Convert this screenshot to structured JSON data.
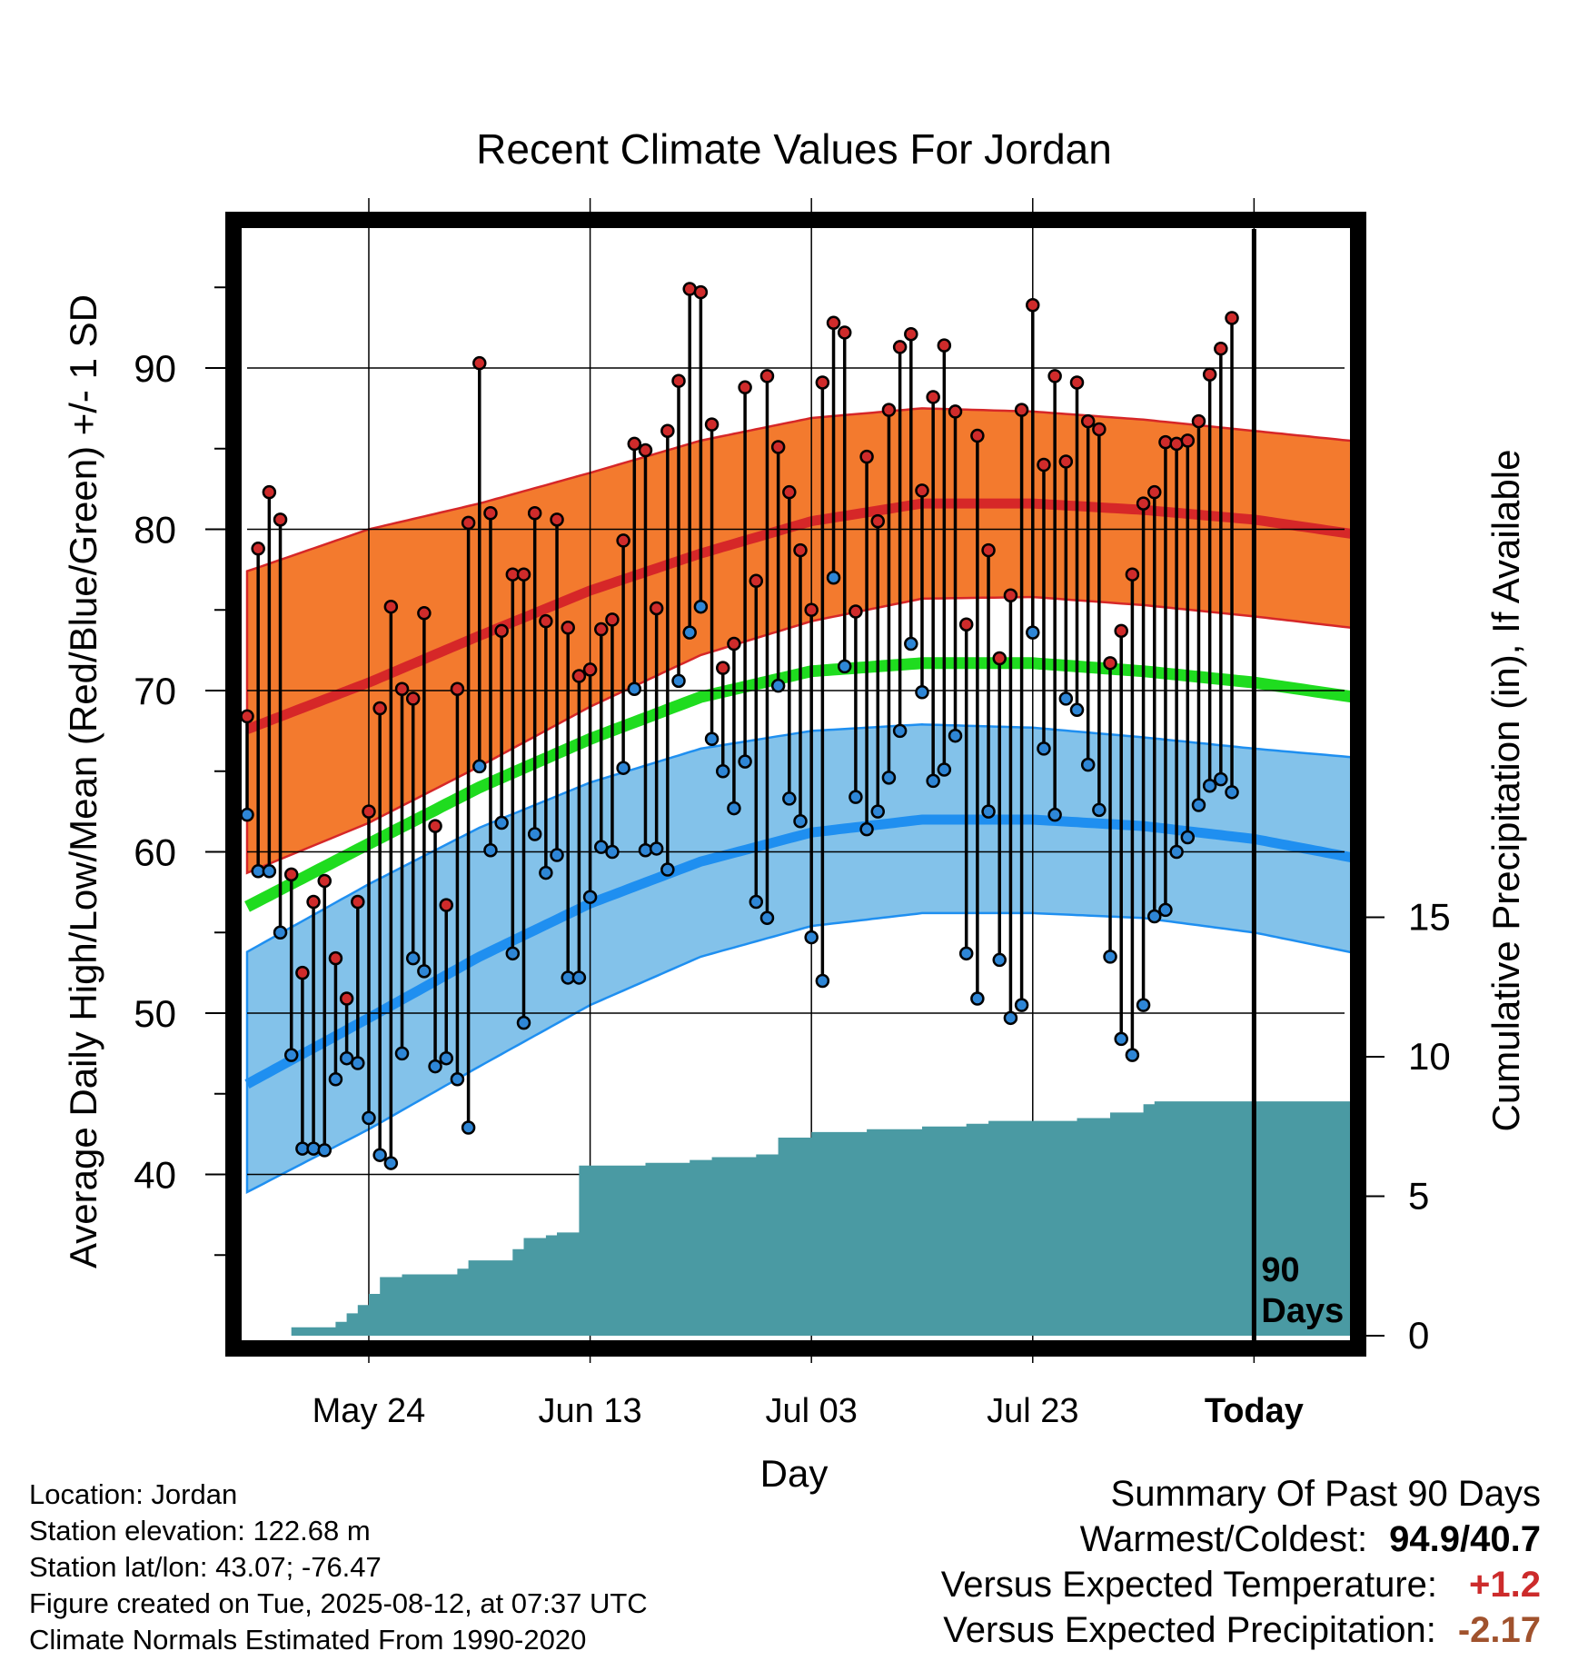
{
  "chart_data": {
    "type": "line",
    "title": "Recent Climate Values For Jordan",
    "xlabel": "Day",
    "ylabel": "Average Daily High/Low/Mean (Red/Blue/Green) +/- 1 SD",
    "y2label": "Cumulative Precipitation (in), If Available",
    "xlim": [
      -11,
      90
    ],
    "ylim": [
      30,
      100
    ],
    "y2lim": [
      0,
      39.5
    ],
    "yticks": [
      40,
      50,
      60,
      70,
      80,
      90
    ],
    "y2ticks": [
      0,
      5,
      10,
      15
    ],
    "xtick_labels": [
      "May 24",
      "Jun 13",
      "Jul 03",
      "Jul 23",
      "Today"
    ],
    "xtick_days": [
      0,
      20,
      40,
      60,
      80
    ],
    "today_marker": {
      "day": 80,
      "label": "90 Days"
    },
    "grid": true,
    "normals": {
      "days": [
        -11,
        0,
        10,
        20,
        30,
        40,
        50,
        60,
        70,
        80,
        90
      ],
      "high_mean": [
        67.6,
        70.5,
        73.4,
        76.2,
        78.5,
        80.5,
        81.6,
        81.6,
        81.2,
        80.6,
        79.6
      ],
      "high_upper": [
        77.4,
        80.0,
        81.6,
        83.5,
        85.5,
        86.9,
        87.5,
        87.3,
        86.8,
        86.1,
        85.4
      ],
      "high_lower": [
        58.7,
        61.8,
        65.3,
        69.0,
        72.2,
        74.3,
        75.7,
        75.8,
        75.3,
        74.6,
        73.8
      ],
      "mean": [
        56.6,
        60.5,
        64.0,
        67.0,
        69.6,
        71.2,
        71.7,
        71.7,
        71.2,
        70.5,
        69.5
      ],
      "low_mean": [
        45.6,
        49.7,
        53.5,
        56.8,
        59.4,
        61.2,
        62.0,
        62.0,
        61.6,
        60.8,
        59.5
      ],
      "low_upper": [
        53.8,
        58.0,
        61.5,
        64.3,
        66.4,
        67.5,
        67.9,
        67.7,
        67.1,
        66.4,
        65.8
      ],
      "low_lower": [
        38.9,
        42.8,
        46.7,
        50.5,
        53.5,
        55.4,
        56.2,
        56.2,
        55.9,
        55.0,
        53.6
      ]
    },
    "series": [
      {
        "name": "High",
        "color": "#cf2b2b",
        "values": [
          68.4,
          78.8,
          82.3,
          80.6,
          58.6,
          52.5,
          56.9,
          58.2,
          53.4,
          50.9,
          56.9,
          62.5,
          68.9,
          75.2,
          70.1,
          69.5,
          74.8,
          61.6,
          56.7,
          70.1,
          80.4,
          90.3,
          81.0,
          73.7,
          77.2,
          77.2,
          81.0,
          74.3,
          80.6,
          73.9,
          70.9,
          71.3,
          73.8,
          74.4,
          79.3,
          85.3,
          84.9,
          75.1,
          86.1,
          89.2,
          94.9,
          94.7,
          86.5,
          71.4,
          72.9,
          88.8,
          76.8,
          89.5,
          85.1,
          82.3,
          78.7,
          75.0,
          89.1,
          92.8,
          92.2,
          74.9,
          84.5,
          80.5,
          87.4,
          91.3,
          92.1,
          82.4,
          88.2,
          91.4,
          87.3,
          74.1,
          85.8,
          78.7,
          72.0,
          75.9,
          87.4,
          93.9,
          84.0,
          89.5,
          84.2,
          89.1,
          86.7,
          86.2,
          71.7,
          73.7,
          77.2,
          81.6,
          82.3,
          85.4,
          85.3,
          85.5,
          86.7,
          89.6,
          91.2,
          93.1
        ]
      },
      {
        "name": "Low",
        "color": "#2e86d6",
        "values": [
          62.3,
          58.8,
          58.8,
          55.0,
          47.4,
          41.6,
          41.6,
          41.5,
          45.9,
          47.2,
          46.9,
          43.5,
          41.2,
          40.7,
          47.5,
          53.4,
          52.6,
          46.7,
          47.2,
          45.9,
          42.9,
          65.3,
          60.1,
          61.8,
          53.7,
          49.4,
          61.1,
          58.7,
          59.8,
          52.2,
          52.2,
          57.2,
          60.3,
          60.0,
          65.2,
          70.1,
          60.1,
          60.2,
          58.9,
          70.6,
          73.6,
          75.2,
          67.0,
          65.0,
          62.7,
          65.6,
          56.9,
          55.9,
          70.3,
          63.3,
          61.9,
          54.7,
          52.0,
          77.0,
          71.5,
          63.4,
          61.4,
          62.5,
          64.6,
          67.5,
          72.9,
          69.9,
          64.4,
          65.1,
          67.2,
          53.7,
          50.9,
          62.5,
          53.3,
          49.7,
          50.5,
          73.6,
          66.4,
          62.3,
          69.5,
          68.8,
          65.4,
          62.6,
          53.5,
          48.4,
          47.4,
          50.5,
          56.0,
          56.4,
          60.0,
          60.9,
          62.9,
          64.1,
          64.5,
          63.7
        ]
      },
      {
        "name": "Cumulative Precipitation",
        "color": "#4a9aa3",
        "days": [
          -11,
          -8,
          -7,
          -4,
          -3,
          -2,
          -1,
          0,
          1,
          3,
          4,
          5,
          6,
          7,
          8,
          9,
          10,
          13,
          14,
          15,
          16,
          17,
          19,
          21,
          22,
          24,
          25,
          29,
          31,
          35,
          37,
          40,
          41,
          43,
          44,
          45,
          46,
          47,
          48,
          50,
          51,
          53,
          54,
          56,
          58,
          59,
          60,
          61,
          62,
          63,
          64,
          65,
          67,
          70,
          71,
          72,
          73,
          90
        ],
        "values": [
          0,
          0,
          0.3,
          0.3,
          0.5,
          0.8,
          1.1,
          1.5,
          2.1,
          2.2,
          2.2,
          2.2,
          2.2,
          2.2,
          2.4,
          2.7,
          2.7,
          3.1,
          3.5,
          3.5,
          3.6,
          3.7,
          6.1,
          6.1,
          6.1,
          6.1,
          6.2,
          6.3,
          6.4,
          6.5,
          7.1,
          7.3,
          7.3,
          7.3,
          7.3,
          7.4,
          7.4,
          7.4,
          7.4,
          7.5,
          7.5,
          7.5,
          7.6,
          7.7,
          7.7,
          7.7,
          7.7,
          7.7,
          7.7,
          7.7,
          7.8,
          7.8,
          8.0,
          8.3,
          8.4,
          8.4,
          8.4,
          8.4
        ]
      }
    ]
  },
  "info": {
    "location": "Location: Jordan",
    "elevation": "Station elevation: 122.68 m",
    "latlon": "Station lat/lon: 43.07; -76.47",
    "created": "Figure created on Tue, 2025-08-12, at 07:37 UTC",
    "normals": "Climate Normals Estimated From 1990-2020"
  },
  "summary": {
    "heading": "Summary Of Past 90 Days",
    "warmest_label": "Warmest/Coldest:",
    "warmest_value": "94.9/40.7",
    "temp_label": "Versus Expected Temperature:",
    "temp_value": "+1.2",
    "temp_color": "#cc2b2b",
    "precip_label": "Versus Expected Precipitation:",
    "precip_value": "-2.17",
    "precip_color": "#a0522d"
  },
  "colors": {
    "high_band": "#f37a2e",
    "high_line": "#d62728",
    "mean_line": "#1fdc1f",
    "low_band": "#83c2ea",
    "low_line": "#1f8ff0",
    "precip_fill": "#4a9aa3"
  }
}
